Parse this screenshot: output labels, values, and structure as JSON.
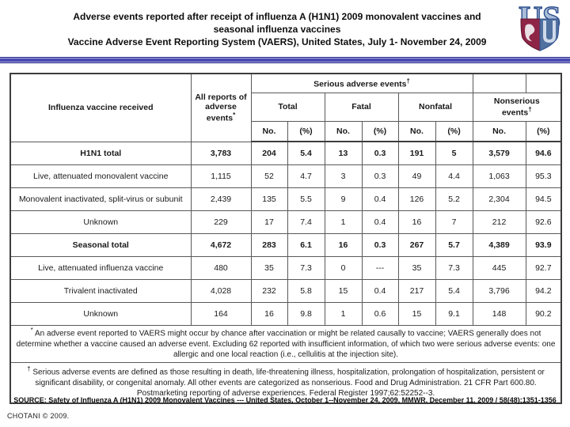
{
  "title": {
    "line1": "Adverse events reported after receipt of influenza A (H1N1) 2009 monovalent vaccines and",
    "line2": "seasonal influenza vaccines",
    "line3": "Vaccine Adverse Event Reporting System (VAERS), United States, July 1- November 24, 2009"
  },
  "logo": {
    "letter_u": "U",
    "letter_s": "S",
    "colors": {
      "letter_fill": "#aabdd8",
      "letter_outline": "#2e4f8e",
      "shield_maroon": "#8e2446",
      "shield_blue": "#50719f"
    }
  },
  "accent": {
    "band_blue": "#4a4ab2",
    "band_dark": "#20208c"
  },
  "table": {
    "header": {
      "vaccine_col": "Influenza vaccine received",
      "all_reports": "All reports of adverse events",
      "all_reports_sup": "*",
      "serious": "Serious adverse events",
      "serious_sup": "†",
      "groups": [
        "Total",
        "Fatal",
        "Nonfatal"
      ],
      "nonserious": "Nonserious events",
      "nonserious_sup": "†",
      "no_label": "No.",
      "pct_label": "(%)"
    },
    "rows": [
      {
        "label": "H1N1 total",
        "bold": true,
        "values": [
          "3,783",
          "204",
          "5.4",
          "13",
          "0.3",
          "191",
          "5",
          "3,579",
          "94.6"
        ]
      },
      {
        "label": "Live, attenuated monovalent vaccine",
        "bold": false,
        "values": [
          "1,115",
          "52",
          "4.7",
          "3",
          "0.3",
          "49",
          "4.4",
          "1,063",
          "95.3"
        ]
      },
      {
        "label": "Monovalent inactivated, split-virus or subunit",
        "bold": false,
        "values": [
          "2,439",
          "135",
          "5.5",
          "9",
          "0.4",
          "126",
          "5.2",
          "2,304",
          "94.5"
        ]
      },
      {
        "label": "Unknown",
        "bold": false,
        "values": [
          "229",
          "17",
          "7.4",
          "1",
          "0.4",
          "16",
          "7",
          "212",
          "92.6"
        ]
      },
      {
        "label": "Seasonal total",
        "bold": true,
        "values": [
          "4,672",
          "283",
          "6.1",
          "16",
          "0.3",
          "267",
          "5.7",
          "4,389",
          "93.9"
        ]
      },
      {
        "label": "Live, attenuated influenza vaccine",
        "bold": false,
        "values": [
          "480",
          "35",
          "7.3",
          "0",
          "---",
          "35",
          "7.3",
          "445",
          "92.7"
        ]
      },
      {
        "label": "Trivalent inactivated",
        "bold": false,
        "values": [
          "4,028",
          "232",
          "5.8",
          "15",
          "0.4",
          "217",
          "5.4",
          "3,796",
          "94.2"
        ]
      },
      {
        "label": "Unknown",
        "bold": false,
        "values": [
          "164",
          "16",
          "9.8",
          "1",
          "0.6",
          "15",
          "9.1",
          "148",
          "90.2"
        ]
      }
    ]
  },
  "footnotes": [
    {
      "marker": "*",
      "text": " An adverse event reported to VAERS might occur by chance after vaccination or might be related causally to vaccine; VAERS generally does not determine whether a vaccine caused an adverse event. Excluding 62 reported with insufficient information, of which two were serious adverse events: one allergic and one local reaction (i.e., cellulitis at the injection site)."
    },
    {
      "marker": "†",
      "text": " Serious adverse events are defined as those resulting in death, life-threatening illness, hospitalization, prolongation of hospitalization, persistent or significant disability, or congenital anomaly. All other events are categorized as nonserious. Food and Drug Administration. 21 CFR Part 600.80. Postmarketing reporting of adverse experiences. Federal Register 1997;62:52252--3."
    }
  ],
  "source_line": "SOURCE: Safety of Influenza A (H1N1) 2009 Monovalent Vaccines --- United States, October 1--November 24, 2009, MMWR. December 11, 2009 / 58(48);1351-1356",
  "copyright": "CHOTANI © 2009."
}
